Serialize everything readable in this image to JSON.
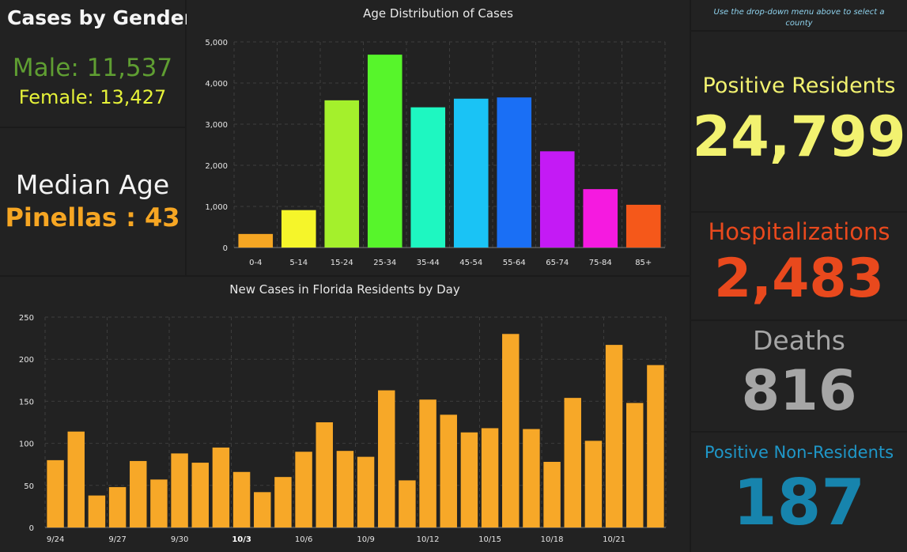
{
  "gender": {
    "title": "Cases by Gender",
    "male": "Male: 11,537",
    "female": "Female: 13,427"
  },
  "median": {
    "label": "Median Age",
    "county": "Pinellas",
    "separator": " : ",
    "value": "43"
  },
  "note": "Use the drop-down menu above to select a county",
  "stats": {
    "positive": {
      "label": "Positive Residents",
      "value": "24,799",
      "color": "#f2f270"
    },
    "hospitalizations": {
      "label": "Hospitalizations",
      "value": "2,483",
      "color": "#e9491d"
    },
    "deaths": {
      "label": "Deaths",
      "value": "816",
      "color": "#a6a6a6"
    },
    "nonresidents": {
      "label": "Positive Non-Residents",
      "value": "187",
      "color": "#1784ad"
    }
  },
  "chart_data": [
    {
      "type": "bar",
      "title": "Age Distribution of Cases",
      "categories": [
        "0-4",
        "5-14",
        "15-24",
        "25-34",
        "35-44",
        "45-54",
        "55-64",
        "65-74",
        "75-84",
        "85+"
      ],
      "values": [
        330,
        910,
        3580,
        4690,
        3410,
        3620,
        3650,
        2340,
        1420,
        1040
      ],
      "colors": [
        "#f5a623",
        "#f5f52a",
        "#a4f02c",
        "#57f52b",
        "#1ef7c1",
        "#1ac3f5",
        "#1a6ff5",
        "#c41af5",
        "#f51ae0",
        "#f5581a"
      ],
      "ylim": [
        0,
        5000
      ],
      "yticks": [
        0,
        1000,
        2000,
        3000,
        4000,
        5000
      ],
      "ytick_labels": [
        "0",
        "1,000",
        "2,000",
        "3,000",
        "4,000",
        "5,000"
      ],
      "grid": true
    },
    {
      "type": "bar",
      "title": "New Cases in Florida Residents by Day",
      "x": [
        "9/24",
        "9/25",
        "9/26",
        "9/27",
        "9/28",
        "9/29",
        "9/30",
        "10/1",
        "10/2",
        "10/3",
        "10/4",
        "10/5",
        "10/6",
        "10/7",
        "10/8",
        "10/9",
        "10/10",
        "10/11",
        "10/12",
        "10/13",
        "10/14",
        "10/15",
        "10/16",
        "10/17",
        "10/18",
        "10/19",
        "10/20",
        "10/21",
        "10/22",
        "10/23"
      ],
      "values": [
        80,
        114,
        38,
        48,
        79,
        57,
        88,
        77,
        95,
        66,
        42,
        60,
        90,
        125,
        91,
        84,
        163,
        56,
        152,
        134,
        113,
        118,
        230,
        117,
        78,
        154,
        103,
        217,
        148,
        193
      ],
      "bar_color": "#f7a828",
      "xtick_labels": [
        "9/24",
        "9/27",
        "9/30",
        "10/3",
        "10/6",
        "10/9",
        "10/12",
        "10/15",
        "10/18",
        "10/21"
      ],
      "highlight_tick": "10/3",
      "ylim": [
        0,
        250
      ],
      "yticks": [
        0,
        50,
        100,
        150,
        200,
        250
      ],
      "grid": true
    }
  ]
}
